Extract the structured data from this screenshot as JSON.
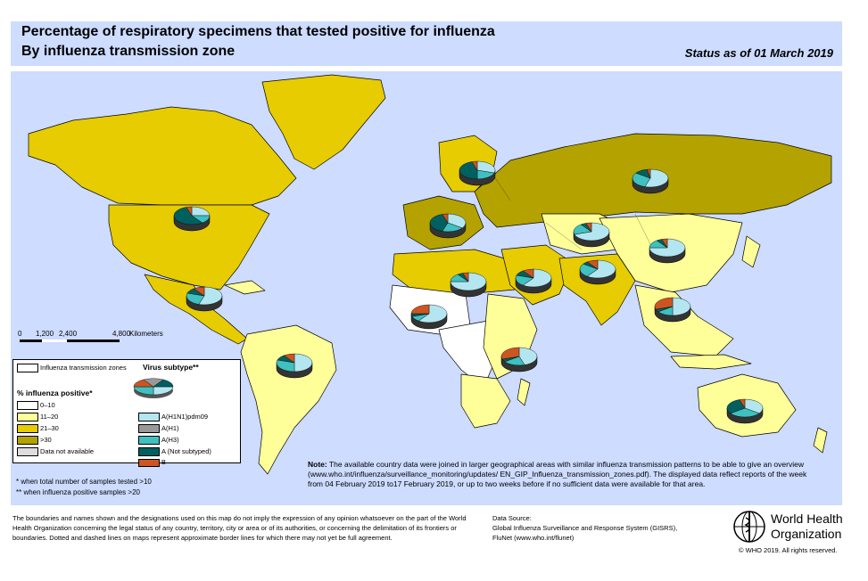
{
  "header": {
    "title_line1": "Percentage of respiratory specimens that tested positive for influenza",
    "title_line2": "By influenza transmission zone",
    "status": "Status as of 01 March 2019"
  },
  "scale_bar": {
    "ticks": [
      "0",
      "1,200",
      "2,400",
      "4,800"
    ],
    "unit": "Kilometers"
  },
  "legend": {
    "zones_label": "Influenza transmission zones",
    "virus_title": "Virus subtype**",
    "percent_title": "% influenza positive*",
    "percent_items": [
      {
        "label": "0–10",
        "color": "#ffffff"
      },
      {
        "label": "11–20",
        "color": "#ffff99"
      },
      {
        "label": "21–30",
        "color": "#e6cc00"
      },
      {
        "label": ">30",
        "color": "#b3a200"
      },
      {
        "label": "Data not available",
        "color": "#dddddd"
      }
    ],
    "subtype_items": [
      {
        "label": "A(H1N1)pdm09",
        "color": "#b3e6f0"
      },
      {
        "label": "A(H1)",
        "color": "#999999"
      },
      {
        "label": "A(H3)",
        "color": "#40c0c0"
      },
      {
        "label": "A (Not subtyped)",
        "color": "#006060"
      },
      {
        "label": "B",
        "color": "#cc5522"
      }
    ],
    "footnote1": "*   when total number of samples tested >10",
    "footnote2": "** when influenza positive samples >20"
  },
  "note": {
    "label": "Note:",
    "text": "The available country data were joined in larger geographical areas with similar influenza transmission patterns to be able to give an overview (www.who.int/influenza/surveillance_monitoring/updates/ EN_GIP_Influenza_transmission_zones.pdf). The displayed data reflect reports of the week from 04 February 2019 to17 February 2019, or up to two weeks before if no sufficient data were available for that area."
  },
  "footer": {
    "disclaimer": "The boundaries and names shown and the designations used on this map do not imply the expression of any opinion whatsoever on the part of the World Health Organization concerning the legal status of any country, territory, city or area or of its authorities, or concerning the delimitation of its frontiers or boundaries. Dotted and dashed lines on maps represent approximate border lines for which there may not yet be full agreement.",
    "data_source_label": "Data Source:",
    "data_source_1": "Global Influenza Surveillance and Response System (GISRS),",
    "data_source_2": "FluNet (www.who.int/flunet)",
    "who_line1": "World Health",
    "who_line2": "Organization",
    "copyright": "© WHO 2019. All rights reserved."
  },
  "colors": {
    "ocean": "#cddcff",
    "level_0_10": "#ffffff",
    "level_11_20": "#ffff99",
    "level_21_30": "#e6cc00",
    "level_over_30": "#b3a200",
    "h1n1": "#b3e6f0",
    "h1": "#999999",
    "h3": "#40c0c0",
    "not_subtyped": "#006060",
    "b": "#cc5522"
  },
  "pies": [
    {
      "zone": "North America",
      "h1n1": 0.25,
      "h3": 0.15,
      "not_subtyped": 0.55,
      "b": 0.05
    },
    {
      "zone": "Central America",
      "h1n1": 0.55,
      "h3": 0.25,
      "not_subtyped": 0.1,
      "b": 0.1
    },
    {
      "zone": "South America",
      "h1n1": 0.5,
      "h3": 0.3,
      "not_subtyped": 0.1,
      "b": 0.1
    },
    {
      "zone": "Northern Europe",
      "h1n1": 0.3,
      "h3": 0.2,
      "not_subtyped": 0.45,
      "b": 0.05
    },
    {
      "zone": "South West Europe",
      "h1n1": 0.35,
      "h3": 0.2,
      "not_subtyped": 0.4,
      "b": 0.05
    },
    {
      "zone": "Eastern Europe",
      "h1n1": 0.55,
      "h3": 0.3,
      "not_subtyped": 0.12,
      "b": 0.03
    },
    {
      "zone": "Central Asia",
      "h1n1": 0.7,
      "h3": 0.2,
      "not_subtyped": 0.05,
      "b": 0.05
    },
    {
      "zone": "Eastern Asia",
      "h1n1": 0.75,
      "h3": 0.15,
      "not_subtyped": 0.05,
      "b": 0.05
    },
    {
      "zone": "Northern Africa",
      "h1n1": 0.75,
      "h3": 0.15,
      "not_subtyped": 0.05,
      "b": 0.05
    },
    {
      "zone": "Western Asia",
      "h1n1": 0.6,
      "h3": 0.2,
      "not_subtyped": 0.1,
      "b": 0.1
    },
    {
      "zone": "Southern Asia",
      "h1n1": 0.6,
      "h3": 0.25,
      "not_subtyped": 0.05,
      "b": 0.1
    },
    {
      "zone": "South East Asia",
      "h1n1": 0.5,
      "h3": 0.15,
      "not_subtyped": 0.05,
      "b": 0.3
    },
    {
      "zone": "Western Africa",
      "h1n1": 0.6,
      "h3": 0.1,
      "not_subtyped": 0.05,
      "b": 0.25
    },
    {
      "zone": "Eastern Africa",
      "h1n1": 0.45,
      "h3": 0.2,
      "not_subtyped": 0.05,
      "b": 0.3
    },
    {
      "zone": "Oceania",
      "h1n1": 0.35,
      "h3": 0.3,
      "not_subtyped": 0.3,
      "b": 0.05
    }
  ]
}
